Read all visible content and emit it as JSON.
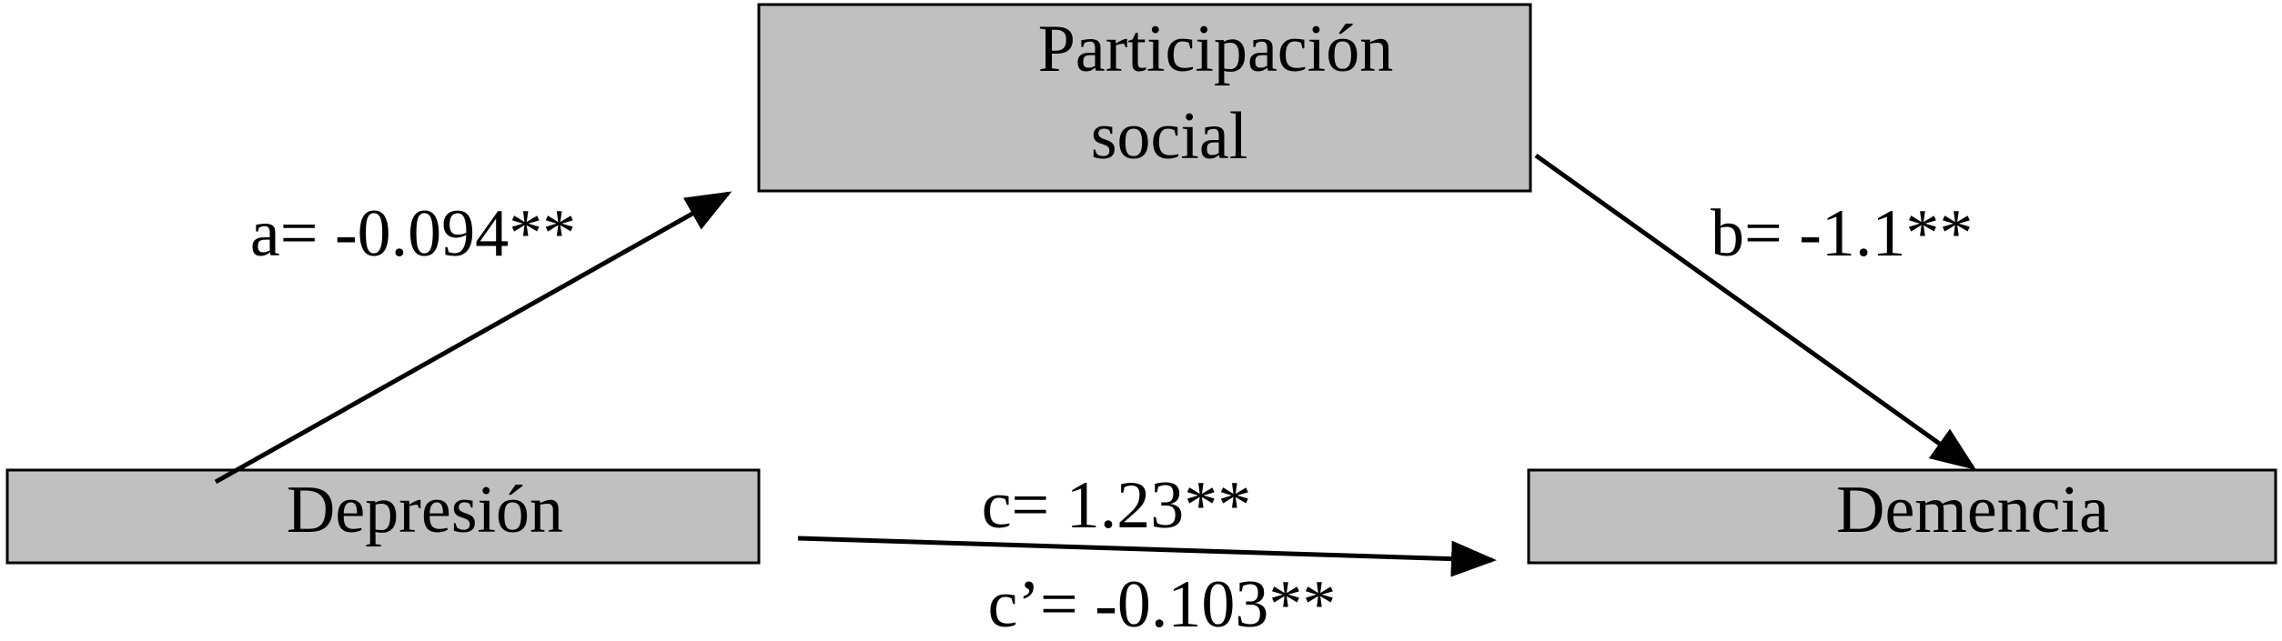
{
  "nodes": [
    {
      "label_lines": [
        "Participación",
        "social"
      ]
    },
    {
      "label_lines": [
        "Depresión"
      ]
    },
    {
      "label_lines": [
        "Demencia"
      ]
    }
  ],
  "paths": [
    {
      "label": "a= -0.094**"
    },
    {
      "label": "b= -1.1**"
    },
    {
      "label": "c= 1.23**"
    },
    {
      "label": "c’= -0.103**"
    }
  ]
}
